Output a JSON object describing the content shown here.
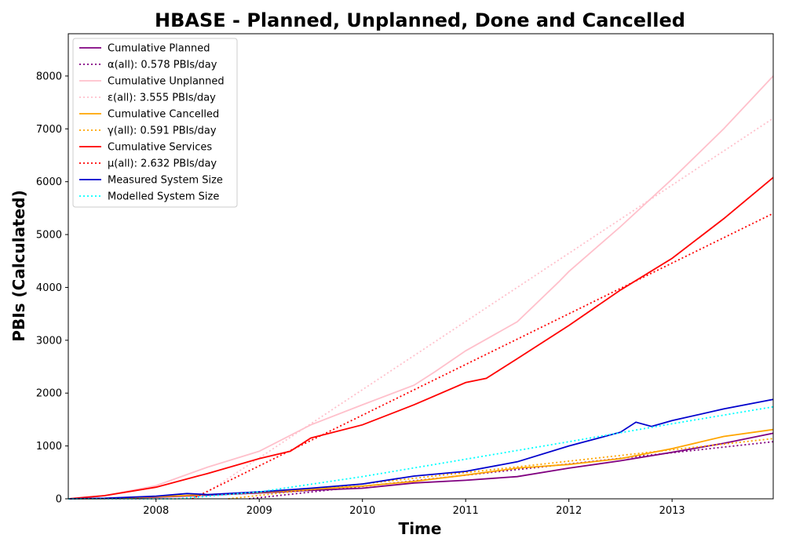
{
  "chart_data": {
    "type": "line",
    "title": "HBASE - Planned, Unplanned, Done  and Cancelled",
    "xlabel": "Time",
    "ylabel": "PBIs (Calculated)",
    "xlim": [
      2007.15,
      2013.98
    ],
    "ylim": [
      0,
      8800
    ],
    "x_ticks": [
      2008,
      2009,
      2010,
      2011,
      2012,
      2013
    ],
    "x_tick_labels": [
      "2008",
      "2009",
      "2010",
      "2011",
      "2012",
      "2013"
    ],
    "y_ticks": [
      0,
      1000,
      2000,
      3000,
      4000,
      5000,
      6000,
      7000,
      8000
    ],
    "y_tick_labels": [
      "0",
      "1000",
      "2000",
      "3000",
      "4000",
      "5000",
      "6000",
      "7000",
      "8000"
    ],
    "grid": false,
    "legend_position": "top-left",
    "series": [
      {
        "name": "Cumulative Planned",
        "color": "#800080",
        "style": "solid",
        "x": [
          2007.15,
          2007.5,
          2008.0,
          2008.5,
          2009.0,
          2009.5,
          2010.0,
          2010.5,
          2011.0,
          2011.5,
          2012.0,
          2012.5,
          2013.0,
          2013.5,
          2013.98
        ],
        "y": [
          0,
          5,
          30,
          70,
          110,
          160,
          200,
          300,
          350,
          420,
          580,
          720,
          880,
          1050,
          1240
        ]
      },
      {
        "name": "α(all): 0.578 PBIs/day",
        "color": "#800080",
        "style": "dotted",
        "x": [
          2008.9,
          2013.98
        ],
        "y": [
          0,
          1080
        ]
      },
      {
        "name": "Cumulative Unplanned",
        "color": "#ffc0cb",
        "style": "solid",
        "x": [
          2007.15,
          2007.5,
          2008.0,
          2008.5,
          2009.0,
          2009.5,
          2010.0,
          2010.5,
          2010.7,
          2011.0,
          2011.5,
          2011.9,
          2012.0,
          2012.5,
          2013.0,
          2013.5,
          2013.98
        ],
        "y": [
          0,
          60,
          250,
          600,
          900,
          1400,
          1780,
          2150,
          2400,
          2800,
          3350,
          4100,
          4300,
          5150,
          6050,
          7000,
          8000
        ]
      },
      {
        "name": "ε(all): 3.555 PBIs/day",
        "color": "#ffc0cb",
        "style": "dotted",
        "x": [
          2008.4,
          2013.98
        ],
        "y": [
          0,
          7200
        ]
      },
      {
        "name": "Cumulative Cancelled",
        "color": "#ffa500",
        "style": "solid",
        "x": [
          2007.15,
          2007.5,
          2008.0,
          2008.5,
          2009.0,
          2009.5,
          2010.0,
          2010.5,
          2011.0,
          2011.5,
          2012.0,
          2012.5,
          2013.0,
          2013.5,
          2013.98
        ],
        "y": [
          0,
          5,
          40,
          80,
          120,
          180,
          240,
          330,
          450,
          580,
          650,
          760,
          950,
          1180,
          1310
        ]
      },
      {
        "name": "γ(all): 0.591 PBIs/day",
        "color": "#ffa500",
        "style": "dotted",
        "x": [
          2008.7,
          2013.98
        ],
        "y": [
          0,
          1140
        ]
      },
      {
        "name": "Cumulative Services",
        "color": "#ff0000",
        "style": "solid",
        "x": [
          2007.15,
          2007.5,
          2008.0,
          2008.5,
          2009.0,
          2009.3,
          2009.5,
          2010.0,
          2010.5,
          2011.0,
          2011.2,
          2011.5,
          2012.0,
          2012.5,
          2013.0,
          2013.5,
          2013.98
        ],
        "y": [
          0,
          60,
          220,
          480,
          760,
          900,
          1150,
          1400,
          1780,
          2200,
          2280,
          2650,
          3280,
          3950,
          4550,
          5300,
          6080
        ]
      },
      {
        "name": "μ(all): 2.632 PBIs/day",
        "color": "#ff0000",
        "style": "dotted",
        "x": [
          2008.35,
          2013.98
        ],
        "y": [
          0,
          5400
        ]
      },
      {
        "name": "Measured System Size",
        "color": "#0000cd",
        "style": "solid",
        "x": [
          2007.15,
          2007.5,
          2008.0,
          2008.3,
          2008.5,
          2009.0,
          2009.5,
          2010.0,
          2010.5,
          2011.0,
          2011.5,
          2012.0,
          2012.5,
          2012.65,
          2012.8,
          2013.0,
          2013.5,
          2013.98
        ],
        "y": [
          0,
          10,
          50,
          100,
          80,
          130,
          200,
          280,
          430,
          520,
          700,
          1000,
          1260,
          1450,
          1370,
          1480,
          1700,
          1880
        ]
      },
      {
        "name": "Modelled System Size",
        "color": "#00ffff",
        "style": "dotted",
        "x": [
          2007.15,
          2008.2,
          2009.0,
          2010.0,
          2011.0,
          2012.0,
          2013.0,
          2013.98
        ],
        "y": [
          0,
          0,
          130,
          420,
          750,
          1080,
          1420,
          1740
        ]
      }
    ]
  }
}
